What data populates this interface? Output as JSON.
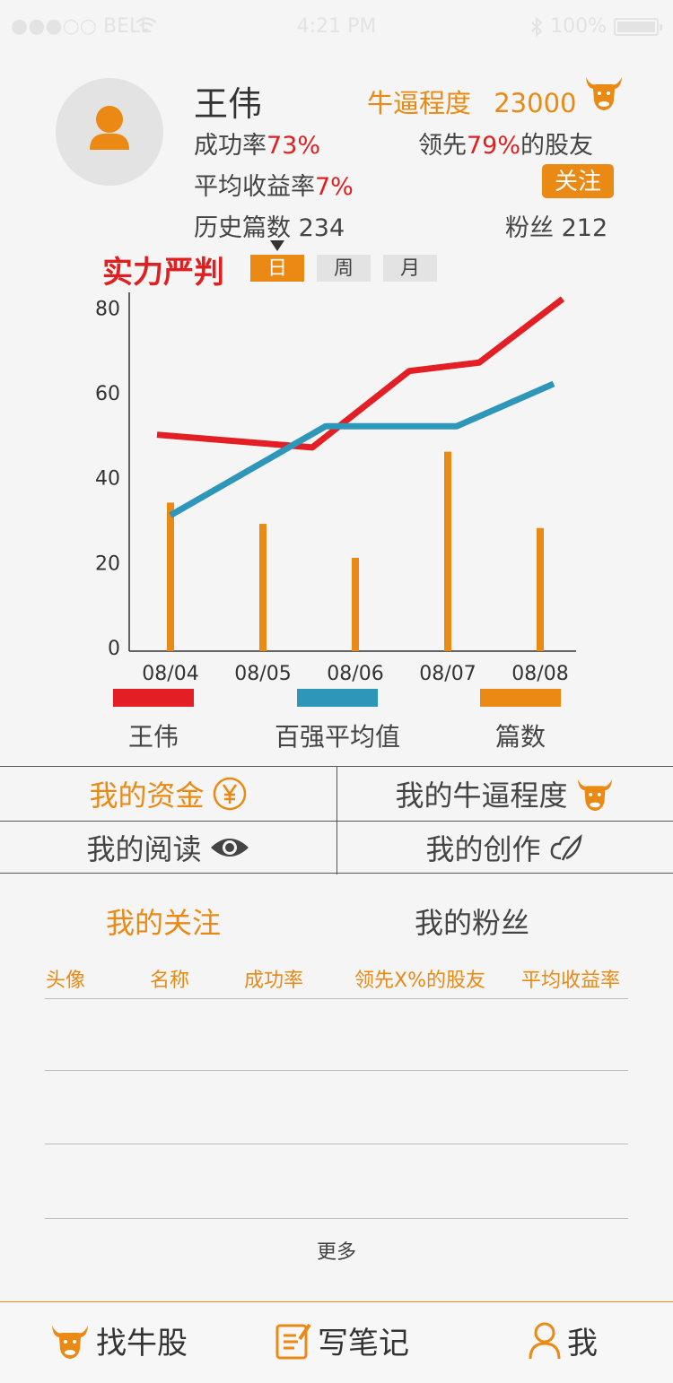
{
  "status_bar": {
    "carrier": "●●●○○ BELL",
    "time": "4:21 PM",
    "battery": "100%"
  },
  "profile": {
    "name": "王伟",
    "niubi_label": "牛逼程度",
    "niubi_value": "23000",
    "success_label": "成功率",
    "success_value": "73%",
    "lead_prefix": "领先",
    "lead_value": "79%",
    "lead_suffix": "的股友",
    "avg_return_label": "平均收益率",
    "avg_return_value": "7%",
    "follow_label": "关注",
    "history_label": "历史篇数",
    "history_value": "234",
    "fans_label": "粉丝",
    "fans_value": "212"
  },
  "chart_section": {
    "title": "实力严判",
    "ranges": [
      "日",
      "周",
      "月"
    ],
    "active_range": "日",
    "legend": [
      {
        "label": "王伟",
        "color": "#e31e24"
      },
      {
        "label": "百强平均值",
        "color": "#2e96b8"
      },
      {
        "label": "篇数",
        "color": "#ea8a14"
      }
    ]
  },
  "chart_data": {
    "type": "line",
    "categories": [
      "08/04",
      "08/05",
      "08/06",
      "08/07",
      "08/08"
    ],
    "yticks": [
      0,
      20,
      40,
      60,
      80
    ],
    "ylim": [
      0,
      82
    ],
    "series": [
      {
        "name": "王伟",
        "type": "line",
        "color": "#e31e24",
        "values": [
          51,
          48,
          66,
          68,
          83
        ]
      },
      {
        "name": "百强平均值",
        "type": "line",
        "color": "#2e96b8",
        "values": [
          32,
          53,
          53,
          53,
          63
        ]
      },
      {
        "name": "篇数",
        "type": "bar",
        "color": "#ea8a14",
        "values": [
          35,
          30,
          22,
          47,
          29
        ]
      }
    ]
  },
  "menu": {
    "funds": "我的资金",
    "niubi": "我的牛逼程度",
    "reading": "我的阅读",
    "creation": "我的创作"
  },
  "tabs": {
    "following": "我的关注",
    "fans": "我的粉丝"
  },
  "table": {
    "columns": [
      "头像",
      "名称",
      "成功率",
      "领先X%的股友",
      "平均收益率"
    ],
    "more": "更多"
  },
  "bottom_nav": {
    "find": "找牛股",
    "write": "写笔记",
    "me": "我"
  },
  "colors": {
    "accent": "#ea8a14",
    "red": "#e02020"
  }
}
